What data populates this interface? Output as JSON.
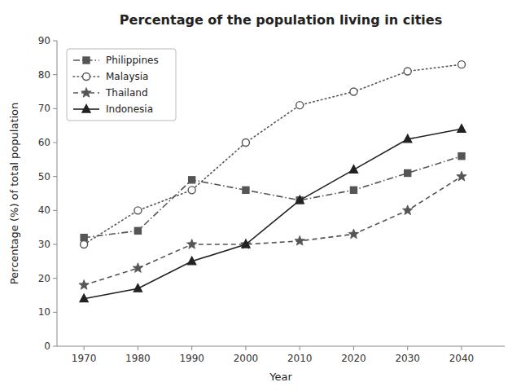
{
  "chart_data": {
    "type": "line",
    "title": "Percentage of the population living in cities",
    "x_label": "Year",
    "y_label": "Percentage (%) of total population",
    "x": [
      1970,
      1980,
      1990,
      2000,
      2010,
      2020,
      2030,
      2040
    ],
    "series": [
      {
        "name": "Philippines",
        "color": "#555555",
        "marker": "square",
        "line_style": "dashdot",
        "values": [
          32,
          34,
          49,
          46,
          43,
          46,
          51,
          56
        ]
      },
      {
        "name": "Malaysia",
        "color": "#555555",
        "marker": "open-circle",
        "line_style": "dotted",
        "values": [
          30,
          40,
          46,
          60,
          71,
          75,
          81,
          83
        ]
      },
      {
        "name": "Thailand",
        "color": "#555555",
        "marker": "star",
        "line_style": "dashed",
        "values": [
          18,
          23,
          30,
          30,
          31,
          33,
          40,
          50
        ]
      },
      {
        "name": "Indonesia",
        "color": "#222222",
        "marker": "triangle",
        "line_style": "solid",
        "values": [
          14,
          17,
          25,
          30,
          43,
          52,
          61,
          64
        ]
      }
    ],
    "xlim": [
      1965,
      2048
    ],
    "xticks": [
      1970,
      1980,
      1990,
      2000,
      2010,
      2020,
      2030,
      2040
    ],
    "ylim": [
      0,
      90
    ],
    "yticks": [
      0,
      10,
      20,
      30,
      40,
      50,
      60,
      70,
      80,
      90
    ],
    "grid": false,
    "legend": "upper left"
  }
}
